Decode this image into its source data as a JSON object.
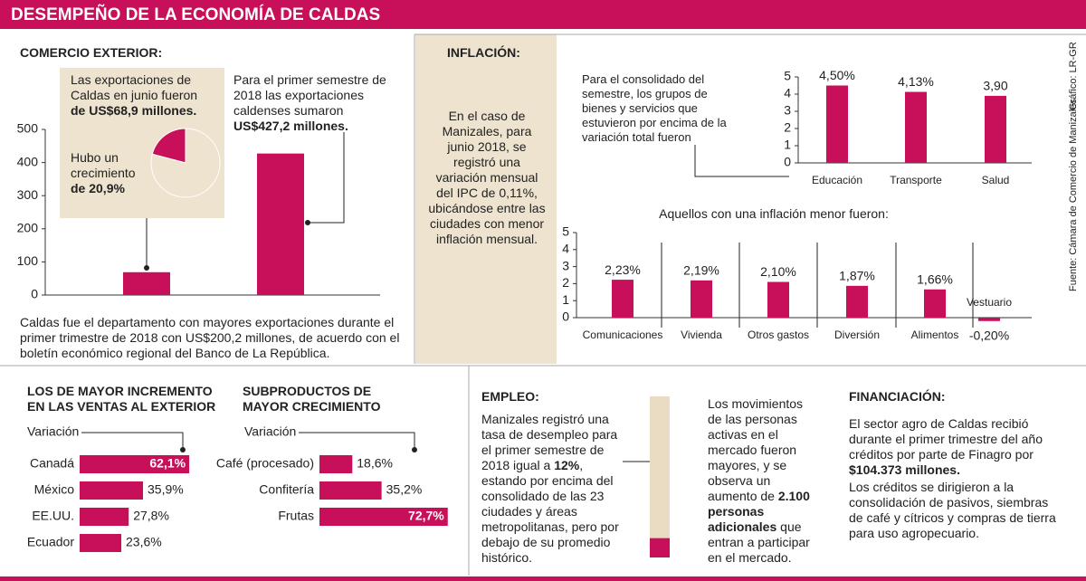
{
  "title": "DESEMPEÑO DE LA ECONOMÍA DE CALDAS",
  "credit": "Gráfico: LR-GR",
  "source": "Fuente: Cámara de Comercio de Manizales",
  "comercio_exterior": {
    "heading": "COMERCIO EXTERIOR:",
    "june_note": [
      {
        "text": "Las exportaciones de Caldas en junio fueron "
      },
      {
        "text": "de US$68,9 millones.",
        "bold": true
      }
    ],
    "growth_note": [
      {
        "text": "Hubo un crecimiento "
      },
      {
        "text": "de 20,9%",
        "bold": true
      }
    ],
    "semester_note": [
      {
        "text": "Para el primer semestre de 2018 las exportaciones caldenses sumaron "
      },
      {
        "text": "US$427,2 millones.",
        "bold": true
      }
    ],
    "summary": [
      {
        "text": "Caldas fue el departamento con mayores exportaciones durante el primer trimestre de 2018 con US$200,2 millones, de acuerdo con el boletín económico regional del Banco de La República."
      }
    ]
  },
  "inflacion": {
    "heading": "INFLACIÓN:",
    "text": [
      {
        "text": "En el caso de Manizales, para junio 2018, se registró una variación mensual del IPC de 0,11%, ubicándose entre las ciudades con menor inflación mensual."
      }
    ]
  },
  "empleo": {
    "heading": "EMPLEO:",
    "text": [
      {
        "text": "Manizales registró una tasa de desempleo para el primer semestre de 2018 igual a "
      },
      {
        "text": "12%",
        "bold": true
      },
      {
        "text": ", estando por encima del consolidado de las 23 ciudades y áreas metropolitanas, pero por debajo de su promedio histórico."
      }
    ],
    "note": [
      {
        "text": "Los movimientos de las personas activas en el mercado fueron mayores, y se observa un aumento de "
      },
      {
        "text": "2.100 personas adicionales",
        "bold": true
      },
      {
        "text": " que entran a participar en el mercado."
      }
    ]
  },
  "financiacion": {
    "heading": "FINANCIACIÓN:",
    "p1": [
      {
        "text": "El sector agro de Caldas recibió durante el primer trimestre del año créditos por parte de  Finagro por "
      },
      {
        "text": "$104.373 millones.",
        "bold": true
      }
    ],
    "p2": [
      {
        "text": "Los créditos se dirigieron a la consolidación de pasivos, siembras de café y cítricos y compras de tierra para uso agropecuario."
      }
    ]
  },
  "chart_data": [
    {
      "type": "bar",
      "categories": [
        null,
        null
      ],
      "values": [
        68.9,
        427.2
      ],
      "color": "#c8105a",
      "ylim": [
        0,
        500
      ],
      "yticks": [
        0,
        100,
        200,
        300,
        400,
        500
      ]
    },
    {
      "type": "pie",
      "values": [
        20.9,
        79.1
      ],
      "colors": [
        "#c8105a",
        "#ede3cf"
      ]
    },
    {
      "type": "bar",
      "title": "Para el consolidado del semestre, los grupos de bienes y servicios que estuvieron por encima de la variación total fueron",
      "categories": [
        "Educación",
        "Transporte",
        "Salud"
      ],
      "values": [
        4.5,
        4.13,
        3.9
      ],
      "value_labels": [
        "4,50%",
        "4,13%",
        "3,90"
      ],
      "color": "#c8105a",
      "ylim": [
        0,
        5
      ],
      "yticks": [
        0,
        1,
        2,
        3,
        4,
        5
      ]
    },
    {
      "type": "bar",
      "title": "Aquellos con una inflación menor fueron:",
      "categories": [
        "Comunicaciones",
        "Vivienda",
        "Otros gastos",
        "Diversión",
        "Alimentos",
        "Vestuario"
      ],
      "values": [
        2.23,
        2.19,
        2.1,
        1.87,
        1.66,
        -0.2
      ],
      "value_labels": [
        "2,23%",
        "2,19%",
        "2,10%",
        "1,87%",
        "1,66%",
        "-0,20%"
      ],
      "color": "#c8105a",
      "ylim": [
        0,
        5
      ],
      "yticks": [
        0,
        1,
        2,
        3,
        4,
        5
      ]
    },
    {
      "type": "hbar",
      "title": "LOS DE MAYOR INCREMENTO EN LAS VENTAS AL EXTERIOR",
      "axis_label": "Variación",
      "categories": [
        "Canadá",
        "México",
        "EE.UU.",
        "Ecuador"
      ],
      "values": [
        62.1,
        35.9,
        27.8,
        23.6
      ],
      "value_labels": [
        "62,1%",
        "35,9%",
        "27,8%",
        "23,6%"
      ],
      "color": "#c8105a"
    },
    {
      "type": "hbar",
      "title": "SUBPRODUCTOS DE MAYOR CRECIMIENTO",
      "axis_label": "Variación",
      "categories": [
        "Café (procesado)",
        "Confitería",
        "Frutas"
      ],
      "values": [
        18.6,
        35.2,
        72.7
      ],
      "value_labels": [
        "18,6%",
        "35,2%",
        "72,7%"
      ],
      "color": "#c8105a"
    },
    {
      "type": "gauge",
      "values": [
        12
      ],
      "ylim": [
        0,
        100
      ],
      "color": "#c8105a",
      "track_color": "#e9dcc3"
    }
  ]
}
